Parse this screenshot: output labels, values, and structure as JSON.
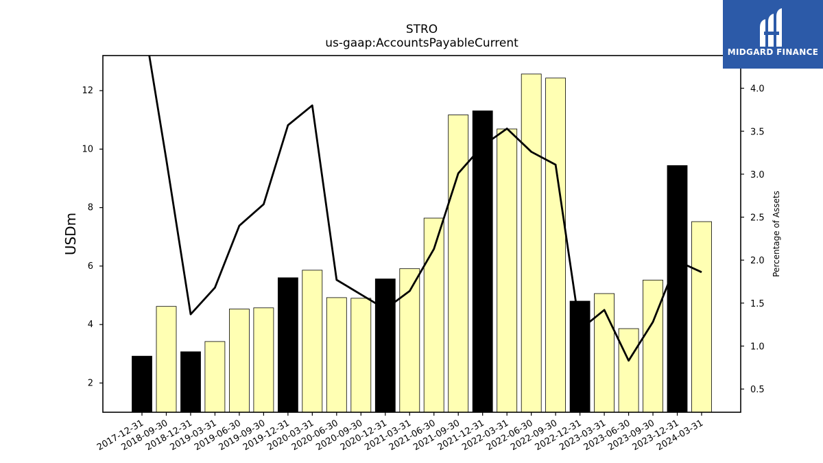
{
  "chart_data": {
    "type": "bar",
    "title": "STRO",
    "subtitle": "us-gaap:AccountsPayableCurrent",
    "ylabel": "USDm",
    "ylabel_right": "Percentage of Assets",
    "categories": [
      "2017-12-31",
      "2018-09-30",
      "2018-12-31",
      "2019-03-31",
      "2019-06-30",
      "2019-09-30",
      "2019-12-31",
      "2020-03-31",
      "2020-06-30",
      "2020-09-30",
      "2020-12-31",
      "2021-03-31",
      "2021-06-30",
      "2021-09-30",
      "2021-12-31",
      "2022-03-31",
      "2022-06-30",
      "2022-09-30",
      "2022-12-31",
      "2023-03-31",
      "2023-06-30",
      "2023-09-30",
      "2023-12-31",
      "2024-03-31"
    ],
    "series": [
      {
        "type": "bar",
        "values": [
          2.92,
          4.62,
          3.07,
          3.42,
          4.53,
          4.57,
          5.6,
          5.86,
          4.92,
          4.9,
          5.56,
          5.91,
          7.64,
          11.17,
          11.31,
          10.69,
          12.57,
          12.43,
          4.8,
          5.06,
          3.86,
          5.52,
          9.44,
          7.52
        ],
        "year_end_color": "#000000",
        "quarter_color": "#ffffb3"
      },
      {
        "type": "line",
        "axis": "right",
        "values": [
          4.9,
          3.17,
          1.37,
          1.68,
          2.4,
          2.65,
          3.57,
          3.8,
          1.77,
          1.6,
          1.43,
          1.64,
          2.13,
          3.01,
          3.33,
          3.53,
          3.26,
          3.11,
          1.19,
          1.42,
          0.83,
          1.28,
          1.99,
          1.86
        ],
        "color": "#000000"
      }
    ],
    "ylim": [
      1.0,
      13.2
    ],
    "ylim_right": [
      0.23,
      4.38
    ],
    "yticks": [
      2,
      4,
      6,
      8,
      10,
      12
    ],
    "yticks_right": [
      "0.5",
      "1.0",
      "1.5",
      "2.0",
      "2.5",
      "3.0",
      "3.5",
      "4.0"
    ],
    "grid": false
  },
  "logo": {
    "text": "MIDGARD FINANCE",
    "color": "#2c5aa8"
  }
}
